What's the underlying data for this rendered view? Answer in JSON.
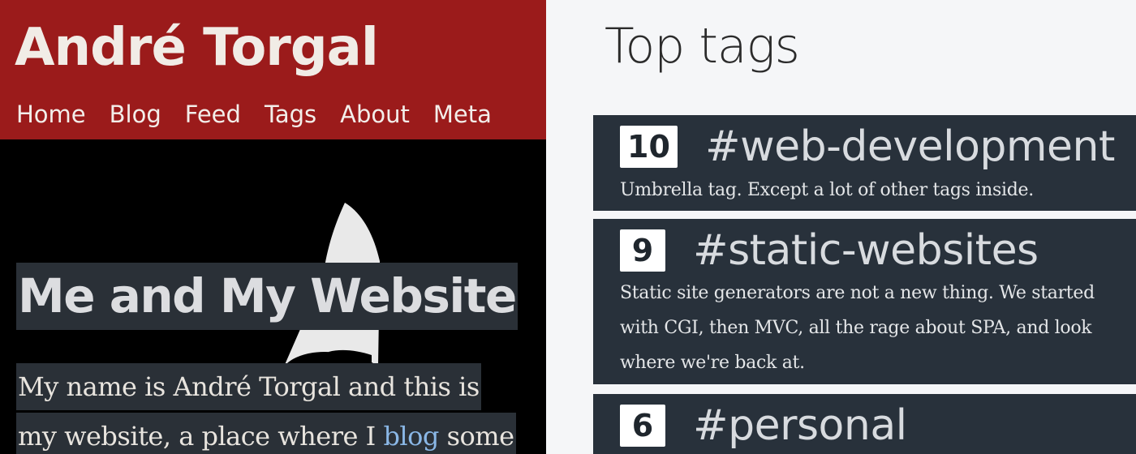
{
  "site": {
    "title": "André Torgal",
    "nav": [
      "Home",
      "Blog",
      "Feed",
      "Tags",
      "About",
      "Meta"
    ]
  },
  "hero": {
    "heading": "Me and My Website",
    "line1": "My name is André Torgal and this is",
    "line2_prefix": "my website, a place where I ",
    "line2_link": "blog",
    "line2_suffix": " some"
  },
  "tags_panel": {
    "title": "Top tags",
    "tags": [
      {
        "count": "10",
        "name": "#web-development",
        "description": "Umbrella tag. Except a lot of other tags inside."
      },
      {
        "count": "9",
        "name": "#static-websites",
        "description": "Static site generators are not a new thing. We started with CGI, then MVC, all the rage about SPA, and look where we're back at."
      },
      {
        "count": "6",
        "name": "#personal",
        "description": ""
      }
    ]
  },
  "colors": {
    "masthead": "#9b1b1b",
    "card_bg": "#28313b",
    "link": "#8ab7e6",
    "page_bg": "#f5f6f8"
  }
}
